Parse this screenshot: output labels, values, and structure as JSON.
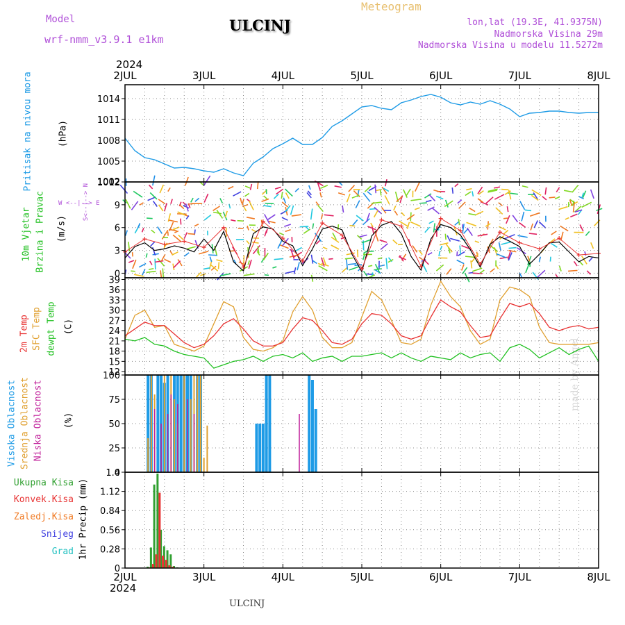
{
  "header": {
    "model_label": "Model",
    "model_name": "wrf-nmm_v3.9.1  e1km",
    "station": "ULCINJ",
    "meteogram": "Meteogram",
    "coords": "lon,lat (19.3E, 41.9375N)",
    "elevation": "Nadmorska Visina 29m",
    "model_elevation": "Nadmorska Visina u modelu 11.5272m",
    "year_top": "2024",
    "year_bottom": "2024",
    "footer_station": "ULCINJ",
    "credit": "made by Angel"
  },
  "colors": {
    "pressure": "#1e9be6",
    "wind_speed": "#000000",
    "gust": "#e83232",
    "temp2m": "#e83232",
    "sfc_temp": "#e0a030",
    "dewpoint": "#20c020",
    "high_cloud": "#1e9be6",
    "mid_cloud": "#e0a030",
    "low_cloud": "#c0209a",
    "total_precip": "#30a030",
    "conv_precip": "#e83232",
    "frozen_precip": "#f07820",
    "snow": "#4040e0",
    "hail": "#20c0c0"
  },
  "axes": {
    "days": [
      "2JUL",
      "3JUL",
      "4JUL",
      "5JUL",
      "6JUL",
      "7JUL",
      "8JUL"
    ]
  },
  "panels": {
    "pressure": {
      "ylabel_main": "Pritisak na nivou mora",
      "unit": "(hPa)"
    },
    "wind": {
      "ylabel_a": "10m Vjetar",
      "ylabel_b": "Brzina i Pravac",
      "unit": "(m/s)",
      "compass": "W <--|--> E",
      "compass_v": "S<--|--> N"
    },
    "temp": {
      "label_a": "2m Temp",
      "label_b": "SFC Temp",
      "label_c": "dewpt Temp",
      "unit": "(C)"
    },
    "cloud": {
      "label_a": "Visoka Oblacnost",
      "label_b": "Srednja Oblacnost",
      "label_c": "Niska Oblacnost",
      "unit": "(%)"
    },
    "precip": {
      "legend": [
        "Ukupna Kisa",
        "Konvek.Kisa",
        "Zaledj.Kisa",
        "Snijeg",
        "Grad"
      ],
      "ylabel": "1hr Precip (mm)"
    }
  },
  "chart_data": [
    {
      "type": "line",
      "title": "",
      "ylabel": "Pritisak na nivou mora (hPa)",
      "ylim": [
        1002,
        1016
      ],
      "yticks": [
        "1002",
        "1005",
        "1008",
        "1011",
        "1014"
      ],
      "xlim": [
        0,
        144
      ],
      "series": [
        {
          "name": "",
          "x": [
            0,
            3,
            6,
            9,
            12,
            15,
            18,
            21,
            24,
            27,
            30,
            33,
            36,
            39,
            42,
            45,
            48,
            51,
            54,
            57,
            60,
            63,
            66,
            69,
            72,
            75,
            78,
            81,
            84,
            87,
            90,
            93,
            96,
            99,
            102,
            105,
            108,
            111,
            114,
            117,
            120,
            123,
            126,
            129,
            132,
            135,
            138,
            141,
            144
          ],
          "y": [
            1008.3,
            1006.5,
            1005.5,
            1005.2,
            1004.6,
            1004.0,
            1004.1,
            1003.9,
            1003.6,
            1003.4,
            1003.9,
            1003.3,
            1002.9,
            1004.7,
            1005.6,
            1006.8,
            1007.5,
            1008.3,
            1007.4,
            1007.4,
            1008.4,
            1010.0,
            1010.8,
            1011.8,
            1012.8,
            1013.0,
            1012.6,
            1012.4,
            1013.4,
            1013.8,
            1014.3,
            1014.6,
            1014.2,
            1013.4,
            1013.1,
            1013.5,
            1013.2,
            1013.7,
            1013.2,
            1012.5,
            1011.4,
            1011.9,
            1012.0,
            1012.2,
            1012.2,
            1012.0,
            1011.9,
            1012.0,
            1012.0
          ]
        }
      ]
    },
    {
      "type": "line",
      "title": "",
      "ylabel": "10m Vjetar Brzina i Pravac (m/s)",
      "ylim": [
        -0.6,
        12
      ],
      "yticks": [
        "0",
        "3",
        "6",
        "9",
        "12"
      ],
      "xlim": [
        0,
        144
      ],
      "series": [
        {
          "name": "",
          "x": [
            0,
            3,
            6,
            9,
            12,
            15,
            18,
            21,
            24,
            27,
            30,
            33,
            36,
            39,
            42,
            45,
            48,
            51,
            54,
            57,
            60,
            63,
            66,
            69,
            72,
            75,
            78,
            81,
            84,
            87,
            90,
            93,
            96,
            99,
            102,
            105,
            108,
            111,
            114,
            117,
            120,
            123,
            126,
            129,
            132,
            135,
            138,
            141,
            144
          ],
          "y": [
            2.0,
            3.5,
            4.0,
            3.0,
            3.2,
            3.6,
            3.3,
            2.8,
            4.5,
            3.0,
            5.5,
            1.5,
            0.3,
            5.2,
            6.1,
            5.8,
            4.2,
            3.6,
            1.0,
            3.2,
            5.8,
            6.2,
            5.7,
            2.5,
            0.2,
            4.9,
            6.3,
            6.8,
            5.2,
            2.2,
            0.4,
            4.5,
            6.4,
            6.0,
            5.0,
            3.1,
            0.8,
            3.8,
            4.8,
            4.2,
            3.5,
            1.2,
            2.5,
            4.0,
            4.1,
            2.8,
            1.5,
            2.2,
            2.0
          ]
        },
        {
          "name": "",
          "x": [
            0,
            6,
            12,
            18,
            24,
            30,
            36,
            42,
            48,
            54,
            60,
            66,
            72,
            78,
            84,
            90,
            96,
            102,
            108,
            114,
            120,
            126,
            132,
            138,
            144
          ],
          "y": [
            2.8,
            4.5,
            3.8,
            4.2,
            3.4,
            6.0,
            0.8,
            6.8,
            4.6,
            1.6,
            6.6,
            5.0,
            0.6,
            7.0,
            6.2,
            0.9,
            7.2,
            5.6,
            1.2,
            5.4,
            4.0,
            3.2,
            4.6,
            2.4,
            2.6
          ]
        }
      ]
    },
    {
      "type": "line",
      "title": "",
      "ylabel": "Temp (C)",
      "ylim": [
        11,
        39.5
      ],
      "yticks": [
        "12",
        "15",
        "18",
        "21",
        "24",
        "27",
        "30",
        "33",
        "36",
        "39"
      ],
      "xlim": [
        0,
        144
      ],
      "series": [
        {
          "name": "2m Temp",
          "x": [
            0,
            3,
            6,
            9,
            12,
            15,
            18,
            21,
            24,
            27,
            30,
            33,
            36,
            39,
            42,
            45,
            48,
            51,
            54,
            57,
            60,
            63,
            66,
            69,
            72,
            75,
            78,
            81,
            84,
            87,
            90,
            93,
            96,
            99,
            102,
            105,
            108,
            111,
            114,
            117,
            120,
            123,
            126,
            129,
            132,
            135,
            138,
            141,
            144
          ],
          "y": [
            22.5,
            24.5,
            26.5,
            25.5,
            25.5,
            23.0,
            20.5,
            19.0,
            20.0,
            22.5,
            26.0,
            27.5,
            24.5,
            21.0,
            19.5,
            19.5,
            20.5,
            24.5,
            27.8,
            27.0,
            24.0,
            20.5,
            20.0,
            21.5,
            26.0,
            29.0,
            28.5,
            26.0,
            22.5,
            21.5,
            22.5,
            28.0,
            33.0,
            31.0,
            29.5,
            25.5,
            22.0,
            22.5,
            27.5,
            32.0,
            31.0,
            32.0,
            29.0,
            25.0,
            24.0,
            25.0,
            25.5,
            24.5,
            25.0
          ]
        },
        {
          "name": "SFC Temp",
          "x": [
            0,
            3,
            6,
            9,
            12,
            15,
            18,
            21,
            24,
            27,
            30,
            33,
            36,
            39,
            42,
            45,
            48,
            51,
            54,
            57,
            60,
            63,
            66,
            69,
            72,
            75,
            78,
            81,
            84,
            87,
            90,
            93,
            96,
            99,
            102,
            105,
            108,
            111,
            114,
            117,
            120,
            123,
            126,
            129,
            132,
            135,
            138,
            141,
            144
          ],
          "y": [
            21.5,
            28.5,
            30.0,
            25.0,
            25.5,
            20.0,
            19.0,
            18.0,
            19.5,
            26.0,
            32.5,
            31.0,
            22.0,
            18.5,
            18.0,
            19.0,
            21.0,
            29.5,
            34.0,
            30.0,
            22.0,
            19.0,
            19.0,
            20.5,
            28.0,
            35.5,
            33.0,
            27.0,
            20.5,
            20.0,
            21.5,
            31.5,
            38.5,
            34.0,
            31.0,
            24.0,
            20.0,
            21.5,
            33.0,
            36.8,
            36.0,
            34.0,
            25.0,
            20.5,
            20.0,
            20.0,
            20.0,
            20.0,
            20.5
          ]
        },
        {
          "name": "dewpt Temp",
          "x": [
            0,
            3,
            6,
            9,
            12,
            15,
            18,
            21,
            24,
            27,
            30,
            33,
            36,
            39,
            42,
            45,
            48,
            51,
            54,
            57,
            60,
            63,
            66,
            69,
            72,
            75,
            78,
            81,
            84,
            87,
            90,
            93,
            96,
            99,
            102,
            105,
            108,
            111,
            114,
            117,
            120,
            123,
            126,
            129,
            132,
            135,
            138,
            141,
            144
          ],
          "y": [
            21.5,
            21.0,
            22.0,
            20.0,
            19.5,
            18.0,
            17.0,
            16.5,
            16.0,
            13.0,
            14.0,
            15.0,
            15.5,
            16.5,
            15.0,
            16.5,
            17.0,
            16.0,
            17.5,
            15.0,
            16.0,
            16.5,
            15.0,
            16.5,
            16.5,
            17.0,
            17.5,
            16.0,
            17.5,
            16.0,
            15.0,
            16.5,
            16.0,
            15.5,
            17.5,
            16.0,
            17.0,
            17.5,
            15.0,
            19.0,
            20.0,
            18.5,
            16.0,
            17.5,
            19.0,
            17.0,
            18.5,
            19.5,
            15.0
          ]
        }
      ]
    },
    {
      "type": "bar",
      "title": "",
      "ylabel": "Oblacnost (%)",
      "ylim": [
        0,
        100
      ],
      "yticks": [
        "0",
        "25",
        "50",
        "75",
        "100"
      ],
      "xlim": [
        0,
        144
      ],
      "series": [
        {
          "name": "Visoka Oblacnost",
          "x": [
            7,
            8,
            10,
            11,
            12,
            13,
            15,
            16,
            17,
            18,
            19,
            20,
            22,
            23,
            40,
            41,
            42,
            43,
            44,
            56,
            57,
            58
          ],
          "values": [
            100,
            100,
            100,
            100,
            92,
            100,
            100,
            100,
            100,
            100,
            100,
            100,
            100,
            100,
            50,
            50,
            50,
            100,
            100,
            100,
            95,
            65
          ]
        },
        {
          "name": "Srednja Oblacnost",
          "x": [
            7,
            8,
            9,
            12,
            14,
            15,
            16,
            18,
            20,
            21,
            22,
            23,
            24,
            25
          ],
          "values": [
            35,
            100,
            80,
            100,
            100,
            75,
            50,
            100,
            75,
            100,
            100,
            100,
            15,
            48
          ]
        },
        {
          "name": "Niska Oblacnost",
          "x": [
            9,
            11,
            13,
            14,
            16,
            19,
            21,
            53
          ],
          "values": [
            65,
            50,
            60,
            80,
            70,
            75,
            60,
            60
          ]
        }
      ]
    },
    {
      "type": "bar",
      "title": "",
      "ylabel": "1hr Precip (mm)",
      "ylim": [
        0,
        1.4
      ],
      "yticks": [
        "0",
        "0.28",
        "0.56",
        "0.84",
        "1.12",
        "1.4"
      ],
      "xlim": [
        0,
        144
      ],
      "series": [
        {
          "name": "Ukupna Kisa",
          "x": [
            7,
            8,
            9,
            10,
            11,
            12,
            13,
            14,
            15,
            16
          ],
          "values": [
            0.02,
            0.3,
            1.22,
            1.38,
            0.56,
            0.32,
            0.26,
            0.2,
            0.03,
            0.01
          ]
        },
        {
          "name": "Konvek.Kisa",
          "x": [
            7,
            8,
            9,
            10,
            11,
            12,
            13,
            14
          ],
          "values": [
            0.01,
            0.06,
            0.2,
            1.1,
            0.18,
            0.12,
            0.04,
            0.02
          ]
        }
      ]
    }
  ]
}
